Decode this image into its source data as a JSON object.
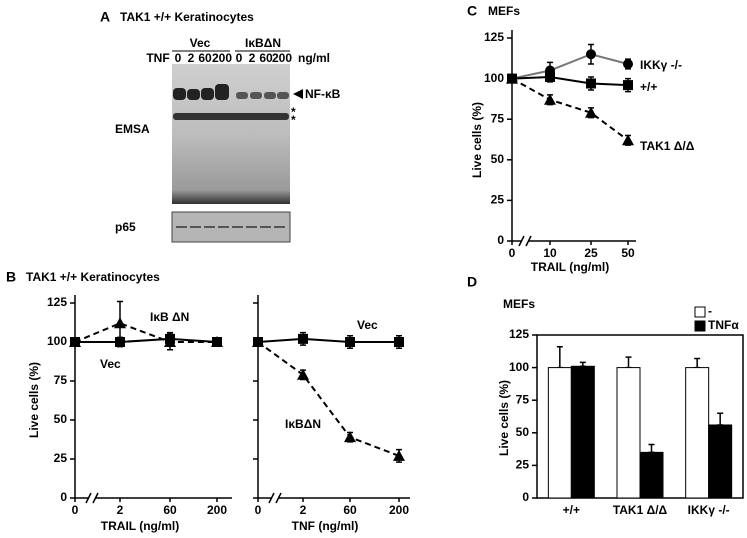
{
  "gel": {
    "panel": "A",
    "title": "TAK1 +/+ Keratinocytes",
    "groups": [
      "Vec",
      "IκBΔN"
    ],
    "treatment": "TNF",
    "doses": [
      0,
      2,
      60,
      200,
      0,
      2,
      60,
      200
    ],
    "unit": "ng/ml",
    "band_label": "NF-κB",
    "asterisks": [
      "*",
      "*"
    ],
    "assay": "EMSA",
    "loading": "p65"
  },
  "chart_data": [
    {
      "type": "line",
      "panel": "B",
      "title": "TAK1 +/+ Keratinocytes",
      "xlabel": "TRAIL (ng/ml)",
      "ylabel": "Live cells (%)",
      "categories": [
        "0",
        "2",
        "60",
        "200"
      ],
      "ylim": [
        0,
        125
      ],
      "yticks": [
        0,
        25,
        50,
        75,
        100,
        125
      ],
      "ytick_labels": true,
      "series": [
        {
          "name": "Vec",
          "color": "#000000",
          "marker": "square",
          "dashed": false,
          "values": [
            100,
            100,
            102,
            100
          ],
          "errors": [
            2,
            3,
            4,
            2
          ]
        },
        {
          "name": "IκB ΔN",
          "color": "#000000",
          "marker": "triangle",
          "dashed": true,
          "values": [
            100,
            112,
            100,
            100
          ],
          "errors": [
            2,
            14,
            5,
            2
          ]
        }
      ]
    },
    {
      "type": "line",
      "xlabel": "TNF (ng/ml)",
      "categories": [
        "0",
        "2",
        "60",
        "200"
      ],
      "ylim": [
        0,
        125
      ],
      "yticks": [
        0,
        25,
        50,
        75,
        100,
        125
      ],
      "ytick_labels": false,
      "series": [
        {
          "name": "Vec",
          "color": "#000000",
          "marker": "square",
          "dashed": false,
          "values": [
            100,
            102,
            100,
            100
          ],
          "errors": [
            2,
            4,
            4,
            4
          ]
        },
        {
          "name": "IκBΔN",
          "color": "#000000",
          "marker": "triangle",
          "dashed": true,
          "values": [
            100,
            79,
            39,
            27
          ],
          "errors": [
            2,
            3,
            3,
            4
          ]
        }
      ]
    },
    {
      "type": "line",
      "panel": "C",
      "title": "MEFs",
      "xlabel": "TRAIL (ng/ml)",
      "ylabel": "Live cells (%)",
      "categories": [
        "0",
        "10",
        "25",
        "50"
      ],
      "ylim": [
        0,
        125
      ],
      "yticks": [
        0,
        25,
        50,
        75,
        100,
        125
      ],
      "ytick_labels": true,
      "series": [
        {
          "name": "IKKγ -/-",
          "color": "#777777",
          "marker": "circle",
          "dashed": false,
          "values": [
            100,
            105,
            115,
            109
          ],
          "errors": [
            2,
            5,
            6,
            3
          ]
        },
        {
          "name": "+/+",
          "color": "#000000",
          "marker": "square",
          "dashed": false,
          "values": [
            100,
            101,
            97,
            96
          ],
          "errors": [
            2,
            3,
            4,
            4
          ]
        },
        {
          "name": "TAK1 Δ/Δ",
          "color": "#000000",
          "marker": "triangle",
          "dashed": true,
          "values": [
            100,
            87,
            79,
            62
          ],
          "errors": [
            2,
            3,
            3,
            3
          ]
        }
      ]
    },
    {
      "type": "bar",
      "panel": "D",
      "title": "MEFs",
      "ylabel": "Live cells (%)",
      "categories": [
        "+/+",
        "TAK1 Δ/Δ",
        "IKKγ -/-"
      ],
      "ylim": [
        0,
        125
      ],
      "yticks": [
        0,
        25,
        50,
        75,
        100,
        125
      ],
      "series": [
        {
          "name": "-",
          "color": "#ffffff",
          "values": [
            100,
            100,
            100
          ],
          "errors": [
            16,
            8,
            7
          ]
        },
        {
          "name": "TNFα",
          "color": "#000000",
          "values": [
            101,
            35,
            56
          ],
          "errors": [
            3,
            6,
            9
          ]
        }
      ]
    }
  ]
}
